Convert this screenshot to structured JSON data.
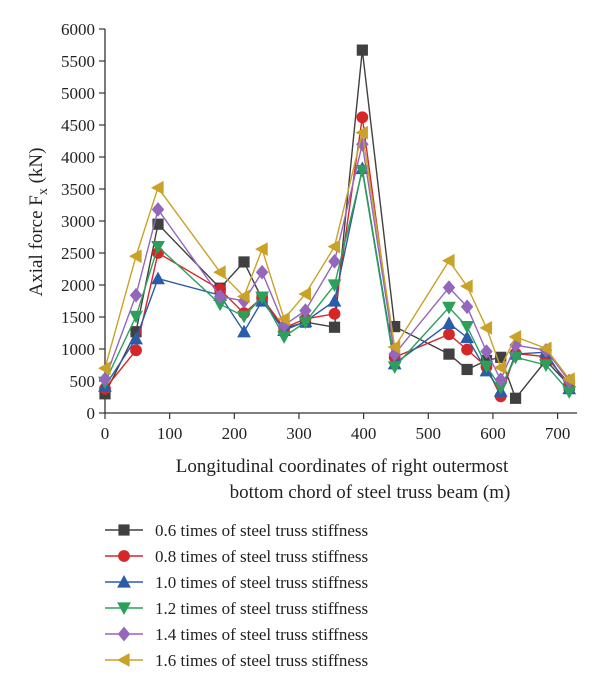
{
  "chart_data": {
    "type": "line",
    "xlabel_line1": "Longitudinal coordinates of right outermost",
    "xlabel_line2": "bottom chord of steel truss beam (m)",
    "ylabel": "Axial force F",
    "ylabel_sub": "x",
    "ylabel_unit": " (kN)",
    "xlim": [
      0,
      730
    ],
    "ylim": [
      0,
      6000
    ],
    "xticks": [
      0,
      100,
      200,
      300,
      400,
      500,
      600,
      700
    ],
    "yticks": [
      0,
      500,
      1000,
      1500,
      2000,
      2500,
      3000,
      3500,
      4000,
      4500,
      5000,
      5500,
      6000
    ],
    "grid": false,
    "legend_position": "bottom",
    "x": [
      0,
      48,
      82,
      178,
      215,
      243,
      277,
      310,
      355,
      398,
      448,
      532,
      560,
      590,
      612,
      635,
      682,
      718
    ],
    "series": [
      {
        "name": "0.6 times of steel truss stiffness",
        "color": "#404040",
        "marker": "square",
        "values": [
          300,
          1270,
          2950,
          1950,
          2360,
          1780,
          1320,
          1420,
          1340,
          5670,
          1350,
          920,
          680,
          820,
          870,
          230,
          820,
          430
        ]
      },
      {
        "name": "0.8 times of steel truss stiffness",
        "color": "#d62728",
        "marker": "circle",
        "values": [
          380,
          980,
          2500,
          1930,
          1560,
          1800,
          1330,
          1470,
          1550,
          4620,
          870,
          1230,
          990,
          720,
          260,
          930,
          880,
          460
        ]
      },
      {
        "name": "1.0 times of steel truss stiffness",
        "color": "#2a5caa",
        "marker": "triangle-up",
        "values": [
          420,
          1160,
          2100,
          1840,
          1270,
          1750,
          1290,
          1430,
          1750,
          3820,
          770,
          1400,
          1180,
          660,
          340,
          920,
          950,
          380
        ]
      },
      {
        "name": "1.2 times of steel truss stiffness",
        "color": "#2ca05a",
        "marker": "triangle-down",
        "values": [
          480,
          1510,
          2600,
          1700,
          1510,
          1810,
          1190,
          1420,
          2000,
          3790,
          720,
          1650,
          1350,
          730,
          400,
          870,
          750,
          330
        ]
      },
      {
        "name": "1.4 times of steel truss stiffness",
        "color": "#9467bd",
        "marker": "diamond",
        "values": [
          530,
          1840,
          3180,
          1820,
          1750,
          2200,
          1370,
          1600,
          2370,
          4200,
          920,
          1960,
          1660,
          960,
          520,
          1060,
          980,
          500
        ]
      },
      {
        "name": "1.6 times of steel truss stiffness",
        "color": "#c9a227",
        "marker": "triangle-left",
        "values": [
          700,
          2450,
          3520,
          2200,
          1820,
          2560,
          1470,
          1860,
          2600,
          4380,
          1030,
          2380,
          1980,
          1330,
          710,
          1190,
          1010,
          530
        ]
      }
    ]
  }
}
